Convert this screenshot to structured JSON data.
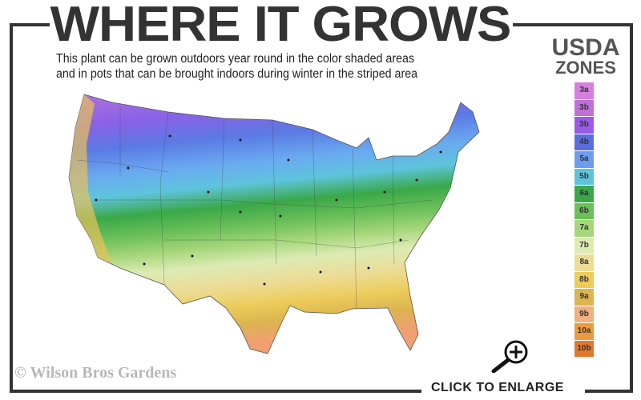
{
  "header": {
    "title": "WHERE IT GROWS",
    "subtitle_line1": "This plant can be grown outdoors year round in the color shaded areas",
    "subtitle_line2": "and in pots that can be brought indoors during winter in the striped area"
  },
  "legend": {
    "title_line1": "USDA",
    "title_line2": "ZONES",
    "zones": [
      {
        "label": "3a",
        "color": "#d77fe0"
      },
      {
        "label": "3b",
        "color": "#c070d8"
      },
      {
        "label": "3b",
        "color": "#9b5ae8"
      },
      {
        "label": "4b",
        "color": "#5a6ee0"
      },
      {
        "label": "5a",
        "color": "#6e9cf0"
      },
      {
        "label": "5b",
        "color": "#5ec4dc"
      },
      {
        "label": "6a",
        "color": "#3aa848"
      },
      {
        "label": "6b",
        "color": "#6cc05a"
      },
      {
        "label": "7a",
        "color": "#a6d67a"
      },
      {
        "label": "7b",
        "color": "#dcebb4"
      },
      {
        "label": "8a",
        "color": "#ecdc96"
      },
      {
        "label": "8b",
        "color": "#eccc5a"
      },
      {
        "label": "9a",
        "color": "#dcb450"
      },
      {
        "label": "9b",
        "color": "#f0b080"
      },
      {
        "label": "10a",
        "color": "#ec9a3c"
      },
      {
        "label": "10b",
        "color": "#e0782c"
      }
    ]
  },
  "footer": {
    "copyright": "© Wilson Bros Gardens",
    "enlarge_label": "CLICK TO ENLARGE",
    "enlarge_icon": "magnifier-plus-icon"
  }
}
